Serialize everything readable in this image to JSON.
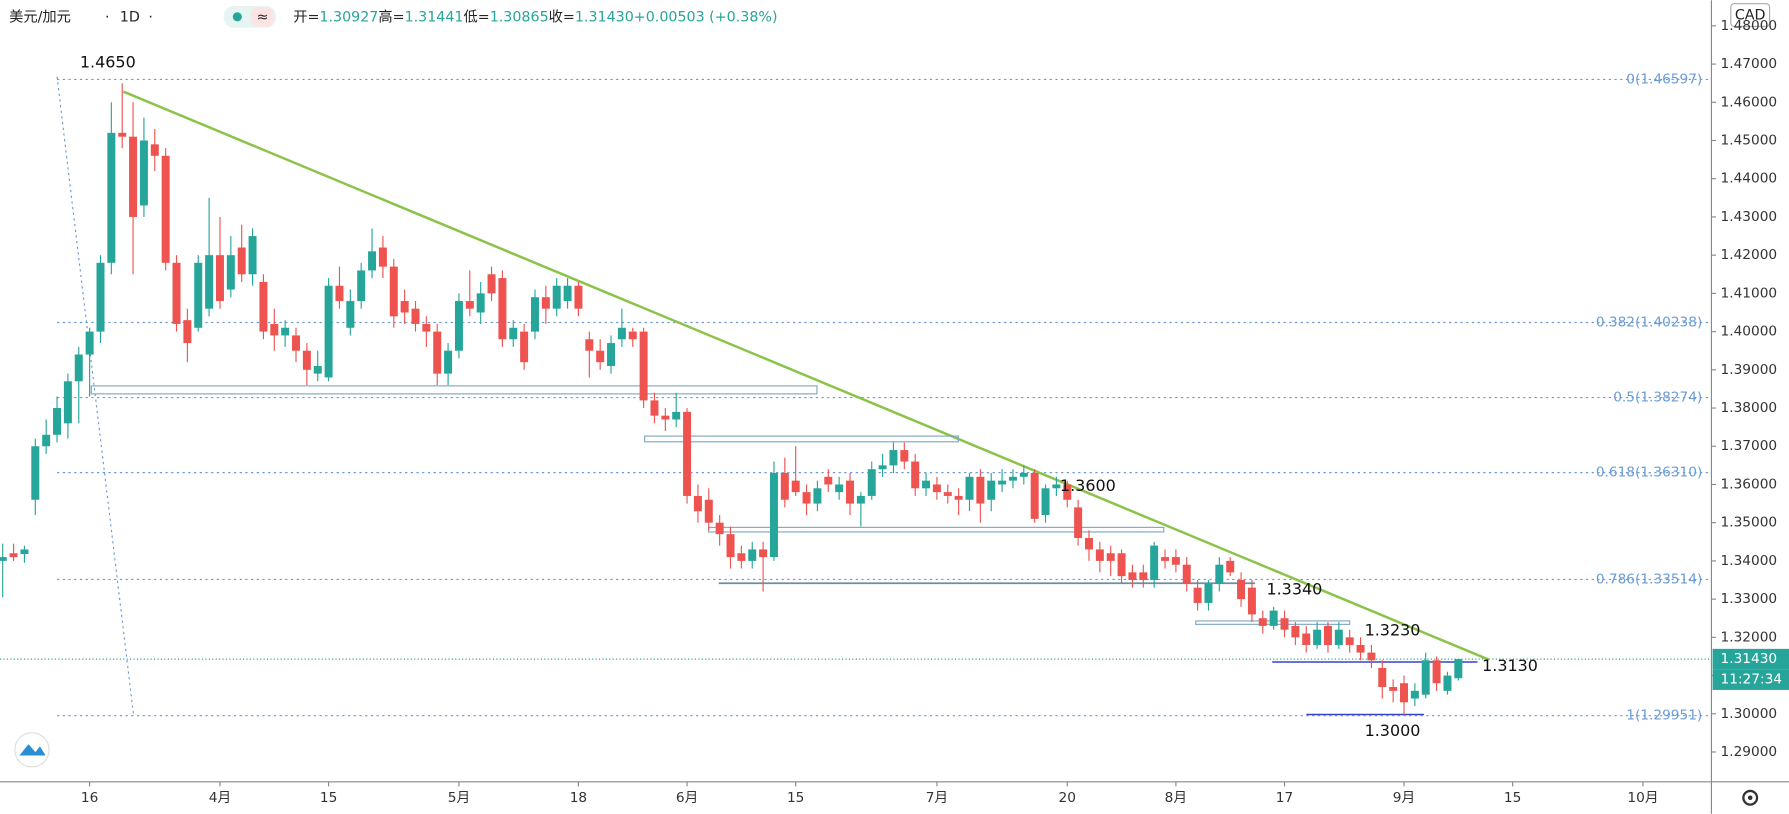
{
  "header": {
    "symbol": "美元/加元",
    "interval": "1D",
    "currency": "CAD",
    "quote": [
      {
        "label": "开=",
        "value": "1.30927"
      },
      {
        "label": "高=",
        "value": "1.31441"
      },
      {
        "label": "低=",
        "value": "1.30865"
      },
      {
        "label": "收=",
        "value": "1.31430"
      }
    ],
    "change": "+0.00503 (+0.38%)"
  },
  "chart_data": {
    "type": "candlestick",
    "up_color": "#26a69a",
    "down_color": "#ef5350",
    "xlim": [
      -0.25,
      157.3
    ],
    "ylim": [
      1.2822,
      1.4867
    ],
    "xticks": [
      {
        "value": 8,
        "label": "16"
      },
      {
        "value": 20,
        "label": "4月"
      },
      {
        "value": 30,
        "label": "15"
      },
      {
        "value": 42,
        "label": "5月"
      },
      {
        "value": 53,
        "label": "18"
      },
      {
        "value": 63,
        "label": "6月"
      },
      {
        "value": 73,
        "label": "15"
      },
      {
        "value": 86,
        "label": "7月"
      },
      {
        "value": 98,
        "label": "20"
      },
      {
        "value": 108,
        "label": "8月"
      },
      {
        "value": 118,
        "label": "17"
      },
      {
        "value": 129,
        "label": "9月"
      },
      {
        "value": 139,
        "label": "15"
      },
      {
        "value": 151,
        "label": "10月"
      }
    ],
    "yticks": [
      {
        "value": 1.29,
        "label": "1.29000"
      },
      {
        "value": 1.3,
        "label": "1.30000"
      },
      {
        "value": 1.31,
        "label": "1.31000"
      },
      {
        "value": 1.32,
        "label": "1.32000"
      },
      {
        "value": 1.33,
        "label": "1.33000"
      },
      {
        "value": 1.34,
        "label": "1.34000"
      },
      {
        "value": 1.35,
        "label": "1.35000"
      },
      {
        "value": 1.36,
        "label": "1.36000"
      },
      {
        "value": 1.37,
        "label": "1.37000"
      },
      {
        "value": 1.38,
        "label": "1.38000"
      },
      {
        "value": 1.39,
        "label": "1.39000"
      },
      {
        "value": 1.4,
        "label": "1.40000"
      },
      {
        "value": 1.41,
        "label": "1.41000"
      },
      {
        "value": 1.42,
        "label": "1.42000"
      },
      {
        "value": 1.43,
        "label": "1.43000"
      },
      {
        "value": 1.44,
        "label": "1.44000"
      },
      {
        "value": 1.45,
        "label": "1.45000"
      },
      {
        "value": 1.46,
        "label": "1.46000"
      },
      {
        "value": 1.47,
        "label": "1.47000"
      },
      {
        "value": 1.48,
        "label": "1.48000"
      }
    ],
    "last_price": {
      "value": 1.3143,
      "label": "1.31430"
    },
    "countdown": "11:27:34",
    "fib_levels": [
      {
        "label": "0(1.46597)",
        "price": 1.46597
      },
      {
        "label": "0.382(1.40238)",
        "price": 1.40238
      },
      {
        "label": "0.5(1.38274)",
        "price": 1.38274
      },
      {
        "label": "0.618(1.36310)",
        "price": 1.3631
      },
      {
        "label": "0.786(1.33514)",
        "price": 1.33514
      },
      {
        "label": "1(1.29951)",
        "price": 1.29951
      }
    ],
    "annotations": [
      "1.4650",
      "1.3600",
      "1.3340",
      "1.3230",
      "1.3130",
      "1.3000"
    ],
    "ohlc": [
      [
        1.34,
        1.3445,
        1.3305,
        1.341
      ],
      [
        1.342,
        1.3445,
        1.34,
        1.341
      ],
      [
        1.3418,
        1.344,
        1.3395,
        1.343
      ],
      [
        1.356,
        1.372,
        1.352,
        1.37
      ],
      [
        1.37,
        1.377,
        1.368,
        1.373
      ],
      [
        1.373,
        1.383,
        1.371,
        1.38
      ],
      [
        1.376,
        1.389,
        1.372,
        1.387
      ],
      [
        1.387,
        1.396,
        1.376,
        1.394
      ],
      [
        1.394,
        1.401,
        1.383,
        1.4
      ],
      [
        1.4,
        1.42,
        1.397,
        1.418
      ],
      [
        1.418,
        1.46,
        1.415,
        1.452
      ],
      [
        1.452,
        1.465,
        1.448,
        1.451
      ],
      [
        1.451,
        1.46,
        1.415,
        1.43
      ],
      [
        1.433,
        1.456,
        1.43,
        1.45
      ],
      [
        1.449,
        1.453,
        1.442,
        1.446
      ],
      [
        1.446,
        1.448,
        1.416,
        1.418
      ],
      [
        1.418,
        1.42,
        1.4,
        1.402
      ],
      [
        1.403,
        1.406,
        1.392,
        1.397
      ],
      [
        1.401,
        1.42,
        1.4,
        1.418
      ],
      [
        1.406,
        1.435,
        1.404,
        1.42
      ],
      [
        1.42,
        1.43,
        1.406,
        1.408
      ],
      [
        1.411,
        1.425,
        1.409,
        1.42
      ],
      [
        1.422,
        1.428,
        1.413,
        1.415
      ],
      [
        1.415,
        1.427,
        1.412,
        1.425
      ],
      [
        1.413,
        1.415,
        1.398,
        1.4
      ],
      [
        1.402,
        1.406,
        1.395,
        1.399
      ],
      [
        1.399,
        1.403,
        1.396,
        1.401
      ],
      [
        1.399,
        1.401,
        1.392,
        1.395
      ],
      [
        1.395,
        1.397,
        1.386,
        1.39
      ],
      [
        1.389,
        1.395,
        1.387,
        1.391
      ],
      [
        1.388,
        1.414,
        1.387,
        1.412
      ],
      [
        1.412,
        1.417,
        1.406,
        1.408
      ],
      [
        1.401,
        1.411,
        1.399,
        1.408
      ],
      [
        1.408,
        1.418,
        1.406,
        1.416
      ],
      [
        1.416,
        1.427,
        1.414,
        1.421
      ],
      [
        1.422,
        1.425,
        1.414,
        1.417
      ],
      [
        1.417,
        1.419,
        1.401,
        1.404
      ],
      [
        1.408,
        1.411,
        1.402,
        1.405
      ],
      [
        1.406,
        1.408,
        1.4,
        1.402
      ],
      [
        1.402,
        1.404,
        1.396,
        1.4
      ],
      [
        1.4,
        1.402,
        1.386,
        1.389
      ],
      [
        1.389,
        1.397,
        1.386,
        1.395
      ],
      [
        1.395,
        1.41,
        1.393,
        1.408
      ],
      [
        1.408,
        1.416,
        1.404,
        1.406
      ],
      [
        1.405,
        1.413,
        1.402,
        1.41
      ],
      [
        1.415,
        1.417,
        1.408,
        1.41
      ],
      [
        1.414,
        1.416,
        1.396,
        1.398
      ],
      [
        1.398,
        1.403,
        1.396,
        1.401
      ],
      [
        1.4,
        1.402,
        1.39,
        1.392
      ],
      [
        1.4,
        1.411,
        1.398,
        1.409
      ],
      [
        1.409,
        1.412,
        1.402,
        1.406
      ],
      [
        1.406,
        1.414,
        1.404,
        1.412
      ],
      [
        1.408,
        1.414,
        1.406,
        1.412
      ],
      [
        1.412,
        1.413,
        1.404,
        1.406
      ],
      [
        1.398,
        1.4,
        1.388,
        1.395
      ],
      [
        1.395,
        1.398,
        1.39,
        1.392
      ],
      [
        1.391,
        1.399,
        1.389,
        1.397
      ],
      [
        1.398,
        1.406,
        1.396,
        1.401
      ],
      [
        1.4,
        1.401,
        1.396,
        1.398
      ],
      [
        1.4,
        1.401,
        1.38,
        1.382
      ],
      [
        1.382,
        1.384,
        1.376,
        1.378
      ],
      [
        1.378,
        1.38,
        1.374,
        1.377
      ],
      [
        1.377,
        1.384,
        1.375,
        1.379
      ],
      [
        1.379,
        1.38,
        1.355,
        1.357
      ],
      [
        1.357,
        1.36,
        1.35,
        1.353
      ],
      [
        1.356,
        1.359,
        1.348,
        1.35
      ],
      [
        1.35,
        1.352,
        1.344,
        1.347
      ],
      [
        1.347,
        1.349,
        1.338,
        1.341
      ],
      [
        1.342,
        1.344,
        1.338,
        1.34
      ],
      [
        1.34,
        1.345,
        1.338,
        1.343
      ],
      [
        1.343,
        1.345,
        1.332,
        1.341
      ],
      [
        1.341,
        1.366,
        1.34,
        1.363
      ],
      [
        1.363,
        1.367,
        1.354,
        1.356
      ],
      [
        1.361,
        1.37,
        1.357,
        1.358
      ],
      [
        1.358,
        1.36,
        1.352,
        1.355
      ],
      [
        1.355,
        1.361,
        1.353,
        1.359
      ],
      [
        1.362,
        1.364,
        1.358,
        1.36
      ],
      [
        1.358,
        1.362,
        1.356,
        1.36
      ],
      [
        1.361,
        1.363,
        1.352,
        1.355
      ],
      [
        1.355,
        1.358,
        1.349,
        1.357
      ],
      [
        1.357,
        1.366,
        1.356,
        1.364
      ],
      [
        1.364,
        1.368,
        1.362,
        1.365
      ],
      [
        1.365,
        1.371,
        1.363,
        1.369
      ],
      [
        1.369,
        1.371,
        1.364,
        1.366
      ],
      [
        1.366,
        1.368,
        1.357,
        1.359
      ],
      [
        1.359,
        1.363,
        1.357,
        1.361
      ],
      [
        1.36,
        1.362,
        1.356,
        1.358
      ],
      [
        1.358,
        1.36,
        1.355,
        1.357
      ],
      [
        1.357,
        1.359,
        1.352,
        1.356
      ],
      [
        1.356,
        1.363,
        1.353,
        1.362
      ],
      [
        1.362,
        1.364,
        1.35,
        1.355
      ],
      [
        1.356,
        1.363,
        1.353,
        1.361
      ],
      [
        1.36,
        1.364,
        1.358,
        1.361
      ],
      [
        1.361,
        1.364,
        1.359,
        1.362
      ],
      [
        1.362,
        1.365,
        1.36,
        1.363
      ],
      [
        1.363,
        1.364,
        1.35,
        1.351
      ],
      [
        1.352,
        1.36,
        1.35,
        1.359
      ],
      [
        1.359,
        1.362,
        1.357,
        1.36
      ],
      [
        1.36,
        1.361,
        1.354,
        1.356
      ],
      [
        1.354,
        1.356,
        1.344,
        1.346
      ],
      [
        1.346,
        1.348,
        1.34,
        1.343
      ],
      [
        1.343,
        1.345,
        1.337,
        1.34
      ],
      [
        1.342,
        1.344,
        1.336,
        1.34
      ],
      [
        1.342,
        1.343,
        1.334,
        1.336
      ],
      [
        1.337,
        1.339,
        1.333,
        1.335
      ],
      [
        1.337,
        1.339,
        1.333,
        1.335
      ],
      [
        1.335,
        1.345,
        1.333,
        1.344
      ],
      [
        1.341,
        1.343,
        1.338,
        1.34
      ],
      [
        1.341,
        1.343,
        1.337,
        1.339
      ],
      [
        1.339,
        1.341,
        1.332,
        1.334
      ],
      [
        1.333,
        1.335,
        1.327,
        1.329
      ],
      [
        1.329,
        1.335,
        1.327,
        1.334
      ],
      [
        1.334,
        1.341,
        1.332,
        1.339
      ],
      [
        1.34,
        1.341,
        1.336,
        1.337
      ],
      [
        1.335,
        1.337,
        1.328,
        1.33
      ],
      [
        1.333,
        1.335,
        1.324,
        1.326
      ],
      [
        1.325,
        1.327,
        1.321,
        1.323
      ],
      [
        1.323,
        1.328,
        1.322,
        1.327
      ],
      [
        1.325,
        1.327,
        1.32,
        1.322
      ],
      [
        1.323,
        1.324,
        1.318,
        1.32
      ],
      [
        1.321,
        1.323,
        1.316,
        1.318
      ],
      [
        1.318,
        1.324,
        1.317,
        1.322
      ],
      [
        1.323,
        1.324,
        1.316,
        1.318
      ],
      [
        1.318,
        1.324,
        1.317,
        1.322
      ],
      [
        1.32,
        1.322,
        1.316,
        1.318
      ],
      [
        1.318,
        1.32,
        1.314,
        1.316
      ],
      [
        1.316,
        1.318,
        1.312,
        1.314
      ],
      [
        1.312,
        1.314,
        1.304,
        1.307
      ],
      [
        1.307,
        1.309,
        1.303,
        1.306
      ],
      [
        1.308,
        1.31,
        1.2995,
        1.303
      ],
      [
        1.304,
        1.308,
        1.302,
        1.306
      ],
      [
        1.305,
        1.316,
        1.304,
        1.314
      ],
      [
        1.314,
        1.315,
        1.306,
        1.308
      ],
      [
        1.306,
        1.311,
        1.305,
        1.31
      ],
      [
        1.3093,
        1.3144,
        1.3087,
        1.3143
      ]
    ]
  }
}
